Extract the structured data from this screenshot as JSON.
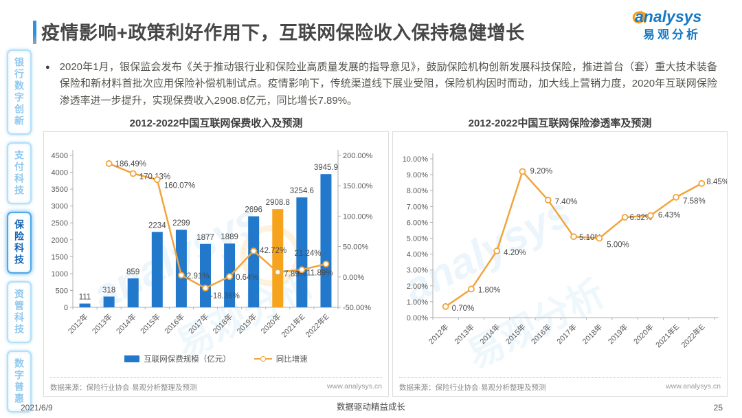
{
  "header": {
    "title": "疫情影响+政策利好作用下，互联网保险收入保持稳健增长",
    "logo_brand": "analysys",
    "logo_brand_cn": "易观分析"
  },
  "sidebar": {
    "items": [
      {
        "label": "银行数字创新",
        "active": false
      },
      {
        "label": "支付科技",
        "active": false
      },
      {
        "label": "保险科技",
        "active": true
      },
      {
        "label": "资管科技",
        "active": false
      },
      {
        "label": "数字普惠",
        "active": false
      }
    ]
  },
  "bullet_text": "2020年1月，银保监会发布《关于推动银行业和保险业高质量发展的指导意见》，鼓励保险机构创新发展科技保险，推进首台（套）重大技术装备保险和新材料首批次应用保险补偿机制试点。疫情影响下，传统渠道线下展业受阻，保险机构因时而动，加大线上营销力度，2020年互联网保险渗透率进一步提升，实现保费收入2908.8亿元，同比增长7.89%。",
  "chart_data": [
    {
      "type": "bar",
      "title": "2012-2022中国互联网保费收入及预测",
      "categories": [
        "2012年",
        "2013年",
        "2014年",
        "2015年",
        "2016年",
        "2017年",
        "2018年",
        "2019年",
        "2020年",
        "2021年E",
        "2022年E"
      ],
      "series": [
        {
          "name": "互联网保费规模（亿元）",
          "chart": "bar",
          "values": [
            111,
            318,
            859,
            2234,
            2299,
            1877,
            1889,
            2696,
            2908.8,
            3254.6,
            3945.9
          ],
          "labels": [
            "111",
            "318",
            "859",
            "2234",
            "2299",
            "1877",
            "1889",
            "2696",
            "2908.8",
            "3254.6",
            "3945.9"
          ],
          "highlight_index": 8
        },
        {
          "name": "同比增速",
          "chart": "line",
          "values": [
            null,
            186.49,
            170.13,
            160.07,
            2.91,
            -18.36,
            0.64,
            42.72,
            7.89,
            11.89,
            21.24
          ],
          "labels": [
            null,
            "186.49%",
            "170.13%",
            "160.07%",
            "2.91%",
            "-18.36%",
            "0.64%",
            "42.72%",
            "7.89%",
            "11.89%",
            "21.24%"
          ]
        }
      ],
      "y_left": {
        "ticks": [
          0,
          500,
          1000,
          1500,
          2000,
          2500,
          3000,
          3500,
          4000,
          4500
        ],
        "min": 0,
        "max": 4500
      },
      "y_right": {
        "tick_labels": [
          "-50.00%",
          "0.00%",
          "50.00%",
          "100.00%",
          "150.00%",
          "200.00%"
        ],
        "tick_values": [
          -50,
          0,
          50,
          100,
          150,
          200
        ],
        "min": -50,
        "max": 200
      },
      "legend_position": "bottom",
      "grid": false,
      "source": "数据来源：保险行业协会·易观分析整理及预测",
      "website": "www.analysys.cn"
    },
    {
      "type": "line",
      "title": "2012-2022中国互联网保险渗透率及预测",
      "categories": [
        "2012年",
        "2013年",
        "2014年",
        "2015年",
        "2016年",
        "2017年",
        "2018年",
        "2019年",
        "2020年",
        "2021年E",
        "2022年E"
      ],
      "series": [
        {
          "chart": "line",
          "values": [
            0.7,
            1.8,
            4.2,
            9.2,
            7.4,
            5.1,
            5.0,
            6.32,
            6.43,
            7.58,
            8.45
          ],
          "labels": [
            "0.70%",
            "1.80%",
            "4.20%",
            "9.20%",
            "7.40%",
            "5.10%",
            "5.00%",
            "6.32%",
            "6.43%",
            "7.58%",
            "8.45%"
          ]
        }
      ],
      "y_left": {
        "tick_labels": [
          "0.00%",
          "1.00%",
          "2.00%",
          "3.00%",
          "4.00%",
          "5.00%",
          "6.00%",
          "7.00%",
          "8.00%",
          "9.00%",
          "10.00%"
        ],
        "tick_values": [
          0,
          1,
          2,
          3,
          4,
          5,
          6,
          7,
          8,
          9,
          10
        ],
        "min": 0,
        "max": 10
      },
      "grid": false,
      "source": "数据来源：保险行业协会·易观分析整理及预测",
      "website": "www.analysys.cn"
    }
  ],
  "footer": {
    "date": "2021/6/9",
    "slogan": "数据驱动精益成长",
    "page_number": "25"
  },
  "colors": {
    "bar_blue": "#2279CB",
    "bar_highlight": "#F6A41E",
    "line_orange": "#F2A43C",
    "axis_line": "#ADADAD",
    "axis_text": "#595959",
    "label_text": "#4A4A4A",
    "sidebar_active": "#1565B5",
    "sidebar_inactive": "#8FC8F0",
    "brand_blue": "#1779C4",
    "brand_orange": "#F49B20",
    "watermark": "#BFE0F5"
  }
}
